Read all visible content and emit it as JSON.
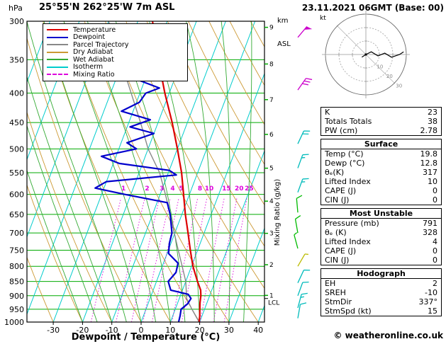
{
  "header": {
    "pressure_unit": "hPa",
    "station_title": "25°55'N 262°25'W 7m ASL",
    "altitude_unit_line1": "km",
    "altitude_unit_line2": "ASL",
    "datetime_title": "23.11.2021 06GMT (Base: 00)"
  },
  "legend": {
    "items": [
      {
        "label": "Temperature",
        "color": "#dd0000",
        "dash": false
      },
      {
        "label": "Dewpoint",
        "color": "#0000cc",
        "dash": false
      },
      {
        "label": "Parcel Trajectory",
        "color": "#888888",
        "dash": false
      },
      {
        "label": "Dry Adiabat",
        "color": "#cc9933",
        "dash": false
      },
      {
        "label": "Wet Adiabat",
        "color": "#33aa33",
        "dash": false
      },
      {
        "label": "Isotherm",
        "color": "#00cccc",
        "dash": false
      },
      {
        "label": "Mixing Ratio",
        "color": "#dd00dd",
        "dash": true
      }
    ]
  },
  "axes": {
    "pressure_ticks": [
      300,
      350,
      400,
      450,
      500,
      550,
      600,
      650,
      700,
      750,
      800,
      850,
      900,
      950,
      1000
    ],
    "temp_ticks": [
      -30,
      -20,
      -10,
      0,
      10,
      20,
      30,
      40
    ],
    "km_ticks": [
      1,
      2,
      3,
      4,
      5,
      6,
      7,
      8,
      9
    ],
    "xlabel": "Dewpoint / Temperature (°C)",
    "mixing_ratio_label": "Mixing Ratio (g/kg)",
    "lcl_label": "LCL",
    "lcl_pressure": 910
  },
  "chart_data": {
    "type": "line",
    "title": "Skew-T log-P sounding 25°55'N 262°25'W 7m ASL",
    "xlabel": "Dewpoint / Temperature (°C)",
    "ylabel": "hPa",
    "xlim": [
      -40,
      42
    ],
    "pressure_range": [
      300,
      1000
    ],
    "isotherms": {
      "min": -110,
      "max": 40,
      "step": 10
    },
    "dry_adiabats": {
      "min": -30,
      "max": 150,
      "step": 10
    },
    "wet_adiabat_starts": [
      -20,
      -15,
      -10,
      -5,
      0,
      5,
      10,
      15,
      20,
      25,
      30,
      35
    ],
    "mixing_ratio_lines": [
      1,
      2,
      3,
      4,
      5,
      8,
      10,
      15,
      20,
      25
    ],
    "colors": {
      "pressure_line": "#00aa00",
      "isotherm": "#00cccc",
      "dry_adiabat": "#cc9933",
      "wet_adiabat": "#33aa33",
      "mixing_ratio": "#dd00dd",
      "temperature": "#dd0000",
      "dewpoint": "#0000cc",
      "parcel": "#888888"
    },
    "series": [
      {
        "name": "Temperature",
        "color": "#dd0000",
        "width": 2.2,
        "points": [
          [
            1000,
            19.8
          ],
          [
            975,
            19.2
          ],
          [
            950,
            18.4
          ],
          [
            925,
            17.6
          ],
          [
            900,
            17.0
          ],
          [
            880,
            16.2
          ],
          [
            850,
            14.0
          ],
          [
            800,
            10.5
          ],
          [
            750,
            7.5
          ],
          [
            700,
            4.5
          ],
          [
            650,
            1.2
          ],
          [
            600,
            -2.0
          ],
          [
            550,
            -5.5
          ],
          [
            500,
            -10.0
          ],
          [
            450,
            -15.2
          ],
          [
            400,
            -21.5
          ],
          [
            350,
            -28.0
          ],
          [
            300,
            -35.0
          ]
        ]
      },
      {
        "name": "Dewpoint",
        "color": "#0000cc",
        "width": 2.2,
        "points": [
          [
            1000,
            12.8
          ],
          [
            975,
            12.5
          ],
          [
            950,
            12.0
          ],
          [
            930,
            13.5
          ],
          [
            910,
            14.0
          ],
          [
            895,
            12.5
          ],
          [
            880,
            6.0
          ],
          [
            850,
            4.0
          ],
          [
            820,
            5.5
          ],
          [
            790,
            5.0
          ],
          [
            760,
            0.5
          ],
          [
            730,
            -0.5
          ],
          [
            700,
            -1.0
          ],
          [
            650,
            -4.0
          ],
          [
            620,
            -6.5
          ],
          [
            600,
            -22.0
          ],
          [
            585,
            -33.0
          ],
          [
            570,
            -30.0
          ],
          [
            555,
            -7.0
          ],
          [
            545,
            -10.0
          ],
          [
            530,
            -28.0
          ],
          [
            515,
            -35.0
          ],
          [
            500,
            -24.0
          ],
          [
            488,
            -28.0
          ],
          [
            470,
            -20.0
          ],
          [
            458,
            -29.0
          ],
          [
            445,
            -23.0
          ],
          [
            430,
            -34.0
          ],
          [
            415,
            -29.0
          ],
          [
            400,
            -28.0
          ],
          [
            392,
            -24.0
          ],
          [
            380,
            -32.0
          ],
          [
            365,
            -44.0
          ],
          [
            355,
            -48.0
          ]
        ]
      },
      {
        "name": "Parcel Trajectory",
        "color": "#888888",
        "width": 1.4,
        "points": [
          [
            1000,
            19.8
          ],
          [
            950,
            15.7
          ],
          [
            910,
            12.5
          ],
          [
            850,
            10.0
          ],
          [
            800,
            6.8
          ],
          [
            750,
            3.4
          ],
          [
            700,
            -0.2
          ],
          [
            650,
            -4.0
          ],
          [
            600,
            -8.2
          ],
          [
            550,
            -13.0
          ],
          [
            500,
            -20.0
          ],
          [
            450,
            -26.0
          ],
          [
            400,
            -33.0
          ],
          [
            350,
            -41.0
          ],
          [
            300,
            -50.0
          ]
        ]
      }
    ],
    "winds": [
      {
        "p": 320,
        "dir": 40,
        "spd": 50,
        "color": "#cc00cc"
      },
      {
        "p": 395,
        "dir": 35,
        "spd": 30,
        "color": "#cc00cc"
      },
      {
        "p": 490,
        "dir": 25,
        "spd": 20,
        "color": "#00bbbb"
      },
      {
        "p": 540,
        "dir": 20,
        "spd": 15,
        "color": "#00bbbb"
      },
      {
        "p": 595,
        "dir": 20,
        "spd": 15,
        "color": "#00bbbb"
      },
      {
        "p": 645,
        "dir": 355,
        "spd": 10,
        "color": "#00bb00"
      },
      {
        "p": 700,
        "dir": 350,
        "spd": 10,
        "color": "#00bb00"
      },
      {
        "p": 745,
        "dir": 345,
        "spd": 5,
        "color": "#00bb00"
      },
      {
        "p": 800,
        "dir": 30,
        "spd": 5,
        "color": "#bbbb00"
      },
      {
        "p": 855,
        "dir": 25,
        "spd": 10,
        "color": "#00bbbb"
      },
      {
        "p": 900,
        "dir": 20,
        "spd": 10,
        "color": "#00bbbb"
      },
      {
        "p": 945,
        "dir": 15,
        "spd": 15,
        "color": "#00bbbb"
      },
      {
        "p": 985,
        "dir": 10,
        "spd": 10,
        "color": "#00bbbb"
      }
    ]
  },
  "hodograph": {
    "unit_label": "kt",
    "max_kt": 30,
    "ring_values": [
      10,
      20,
      30
    ],
    "trace": [
      [
        -3,
        -2
      ],
      [
        0,
        0
      ],
      [
        4,
        2
      ],
      [
        9,
        -1
      ],
      [
        14,
        1
      ],
      [
        19,
        -2
      ],
      [
        25,
        0
      ],
      [
        28,
        2
      ]
    ]
  },
  "panel": {
    "summary": {
      "rows": [
        [
          "K",
          "23"
        ],
        [
          "Totals Totals",
          "38"
        ],
        [
          "PW (cm)",
          "2.78"
        ]
      ]
    },
    "sections": [
      {
        "title": "Surface",
        "rows": [
          [
            "Temp (°C)",
            "19.8"
          ],
          [
            "Dewp (°C)",
            "12.8"
          ],
          [
            "θₑ(K)",
            "317"
          ],
          [
            "Lifted Index",
            "10"
          ],
          [
            "CAPE (J)",
            "0"
          ],
          [
            "CIN (J)",
            "0"
          ]
        ]
      },
      {
        "title": "Most Unstable",
        "rows": [
          [
            "Pressure (mb)",
            "791"
          ],
          [
            "θₑ (K)",
            "328"
          ],
          [
            "Lifted Index",
            "4"
          ],
          [
            "CAPE (J)",
            "0"
          ],
          [
            "CIN (J)",
            "0"
          ]
        ]
      },
      {
        "title": "Hodograph",
        "rows": [
          [
            "EH",
            "2"
          ],
          [
            "SREH",
            "-10"
          ],
          [
            "StmDir",
            "337°"
          ],
          [
            "StmSpd (kt)",
            "15"
          ]
        ]
      }
    ]
  },
  "footer": {
    "copyright": "© weatheronline.co.uk"
  }
}
